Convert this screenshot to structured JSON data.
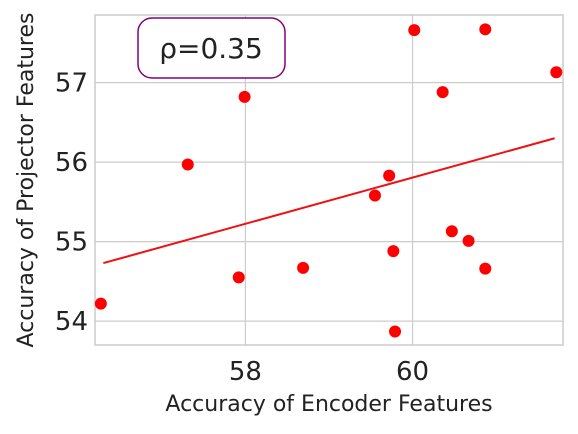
{
  "chart_data": {
    "type": "scatter",
    "xlabel": "Accuracy of Encoder Features",
    "ylabel": "Accuracy of Projector Features",
    "xlim": [
      56.2,
      61.8
    ],
    "ylim": [
      53.7,
      57.85
    ],
    "xticks": [
      58,
      60
    ],
    "yticks": [
      54,
      55,
      56,
      57
    ],
    "grid": true,
    "annotation": "ρ=0.35",
    "colors": {
      "points": "#ff0000",
      "fit_line": "#ee1111",
      "annotation_border": "#800080",
      "grid": "#cccccc"
    },
    "points": [
      {
        "x": 56.27,
        "y": 54.22
      },
      {
        "x": 57.31,
        "y": 55.97
      },
      {
        "x": 57.92,
        "y": 54.55
      },
      {
        "x": 57.99,
        "y": 56.82
      },
      {
        "x": 58.69,
        "y": 54.67
      },
      {
        "x": 59.55,
        "y": 55.58
      },
      {
        "x": 59.72,
        "y": 55.83
      },
      {
        "x": 59.77,
        "y": 54.88
      },
      {
        "x": 59.79,
        "y": 53.87
      },
      {
        "x": 60.02,
        "y": 57.66
      },
      {
        "x": 60.36,
        "y": 56.88
      },
      {
        "x": 60.47,
        "y": 55.13
      },
      {
        "x": 60.67,
        "y": 55.01
      },
      {
        "x": 60.87,
        "y": 54.66
      },
      {
        "x": 60.87,
        "y": 57.67
      },
      {
        "x": 61.72,
        "y": 57.13
      }
    ],
    "fit_line": {
      "x": [
        56.3,
        61.7
      ],
      "y": [
        54.73,
        56.3
      ]
    }
  }
}
